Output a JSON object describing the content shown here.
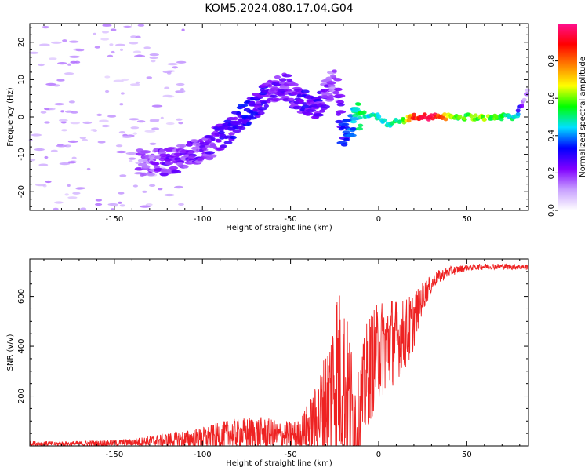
{
  "title": "KOM5.2024.080.17.04.G04",
  "chart_data": [
    {
      "type": "heatmap",
      "xlabel": "Height of straight line (km)",
      "ylabel": "Frequency (Hz)",
      "xlim": [
        -198,
        85
      ],
      "ylim": [
        -25,
        25
      ],
      "x_ticks": [
        -150,
        -100,
        -50,
        0,
        50
      ],
      "y_ticks": [
        -20,
        -10,
        0,
        10,
        20
      ],
      "colorbar": {
        "label": "Normalized spectral amplitude",
        "range": [
          0,
          1
        ],
        "ticks": [
          "0.0",
          "0.2",
          "0.4",
          "0.6",
          "0.8"
        ],
        "tick_values": [
          0.0,
          0.2,
          0.4,
          0.6,
          0.8
        ],
        "colormap": [
          "#ffffff",
          "#c8a0ff",
          "#8000ff",
          "#0000ff",
          "#00e0ff",
          "#00ff00",
          "#ffff00",
          "#ff8000",
          "#ff0000",
          "#ff1090"
        ]
      },
      "traces": [
        {
          "name_hint": "weak noise streaks",
          "x_range": [
            -198,
            -130
          ],
          "freq_range": [
            -25,
            25
          ],
          "amplitude": 0.05
        },
        {
          "name_hint": "rising signal",
          "points": [
            {
              "x": -135,
              "y": -12,
              "a": 0.15
            },
            {
              "x": -120,
              "y": -12,
              "a": 0.2
            },
            {
              "x": -100,
              "y": -9,
              "a": 0.2
            },
            {
              "x": -85,
              "y": -4,
              "a": 0.25
            },
            {
              "x": -75,
              "y": 1,
              "a": 0.3
            },
            {
              "x": -65,
              "y": 5,
              "a": 0.25
            },
            {
              "x": -55,
              "y": 9,
              "a": 0.2
            },
            {
              "x": -45,
              "y": 4,
              "a": 0.25
            },
            {
              "x": -35,
              "y": 3,
              "a": 0.25
            },
            {
              "x": -25,
              "y": 9,
              "a": 0.15
            },
            {
              "x": -20,
              "y": -4,
              "a": 0.3
            },
            {
              "x": -10,
              "y": 1,
              "a": 0.5
            },
            {
              "x": 0,
              "y": 0,
              "a": 0.45
            },
            {
              "x": 5,
              "y": -2,
              "a": 0.45
            },
            {
              "x": 12,
              "y": -1,
              "a": 0.5
            },
            {
              "x": 20,
              "y": 0,
              "a": 0.85
            },
            {
              "x": 30,
              "y": 0,
              "a": 0.95
            },
            {
              "x": 45,
              "y": 0,
              "a": 0.55
            },
            {
              "x": 60,
              "y": 0,
              "a": 0.6
            },
            {
              "x": 78,
              "y": 0,
              "a": 0.45
            },
            {
              "x": 82,
              "y": 4,
              "a": 0.15
            },
            {
              "x": 85,
              "y": 8,
              "a": 0.1
            }
          ]
        }
      ]
    },
    {
      "type": "line",
      "xlabel": "Height of straight line (km)",
      "ylabel": "SNR (v/v)",
      "xlim": [
        -198,
        85
      ],
      "ylim": [
        0,
        750
      ],
      "x_ticks": [
        -150,
        -100,
        -50,
        0,
        50
      ],
      "y_ticks": [
        200,
        400,
        600
      ],
      "color": "#ee2222",
      "envelope": {
        "x": [
          -198,
          -180,
          -160,
          -140,
          -120,
          -100,
          -85,
          -70,
          -55,
          -45,
          -35,
          -28,
          -24,
          -20,
          -16,
          -12,
          -6,
          0,
          6,
          12,
          18,
          25,
          32,
          40,
          50,
          60,
          70,
          85
        ],
        "base": [
          10,
          8,
          10,
          14,
          22,
          30,
          45,
          50,
          40,
          45,
          100,
          200,
          300,
          260,
          150,
          80,
          300,
          380,
          420,
          430,
          470,
          600,
          670,
          700,
          715,
          720,
          720,
          718
        ],
        "amp": [
          10,
          10,
          12,
          15,
          30,
          45,
          60,
          70,
          60,
          60,
          150,
          260,
          380,
          340,
          300,
          200,
          230,
          200,
          200,
          150,
          140,
          60,
          30,
          20,
          12,
          12,
          12,
          12
        ]
      }
    }
  ]
}
